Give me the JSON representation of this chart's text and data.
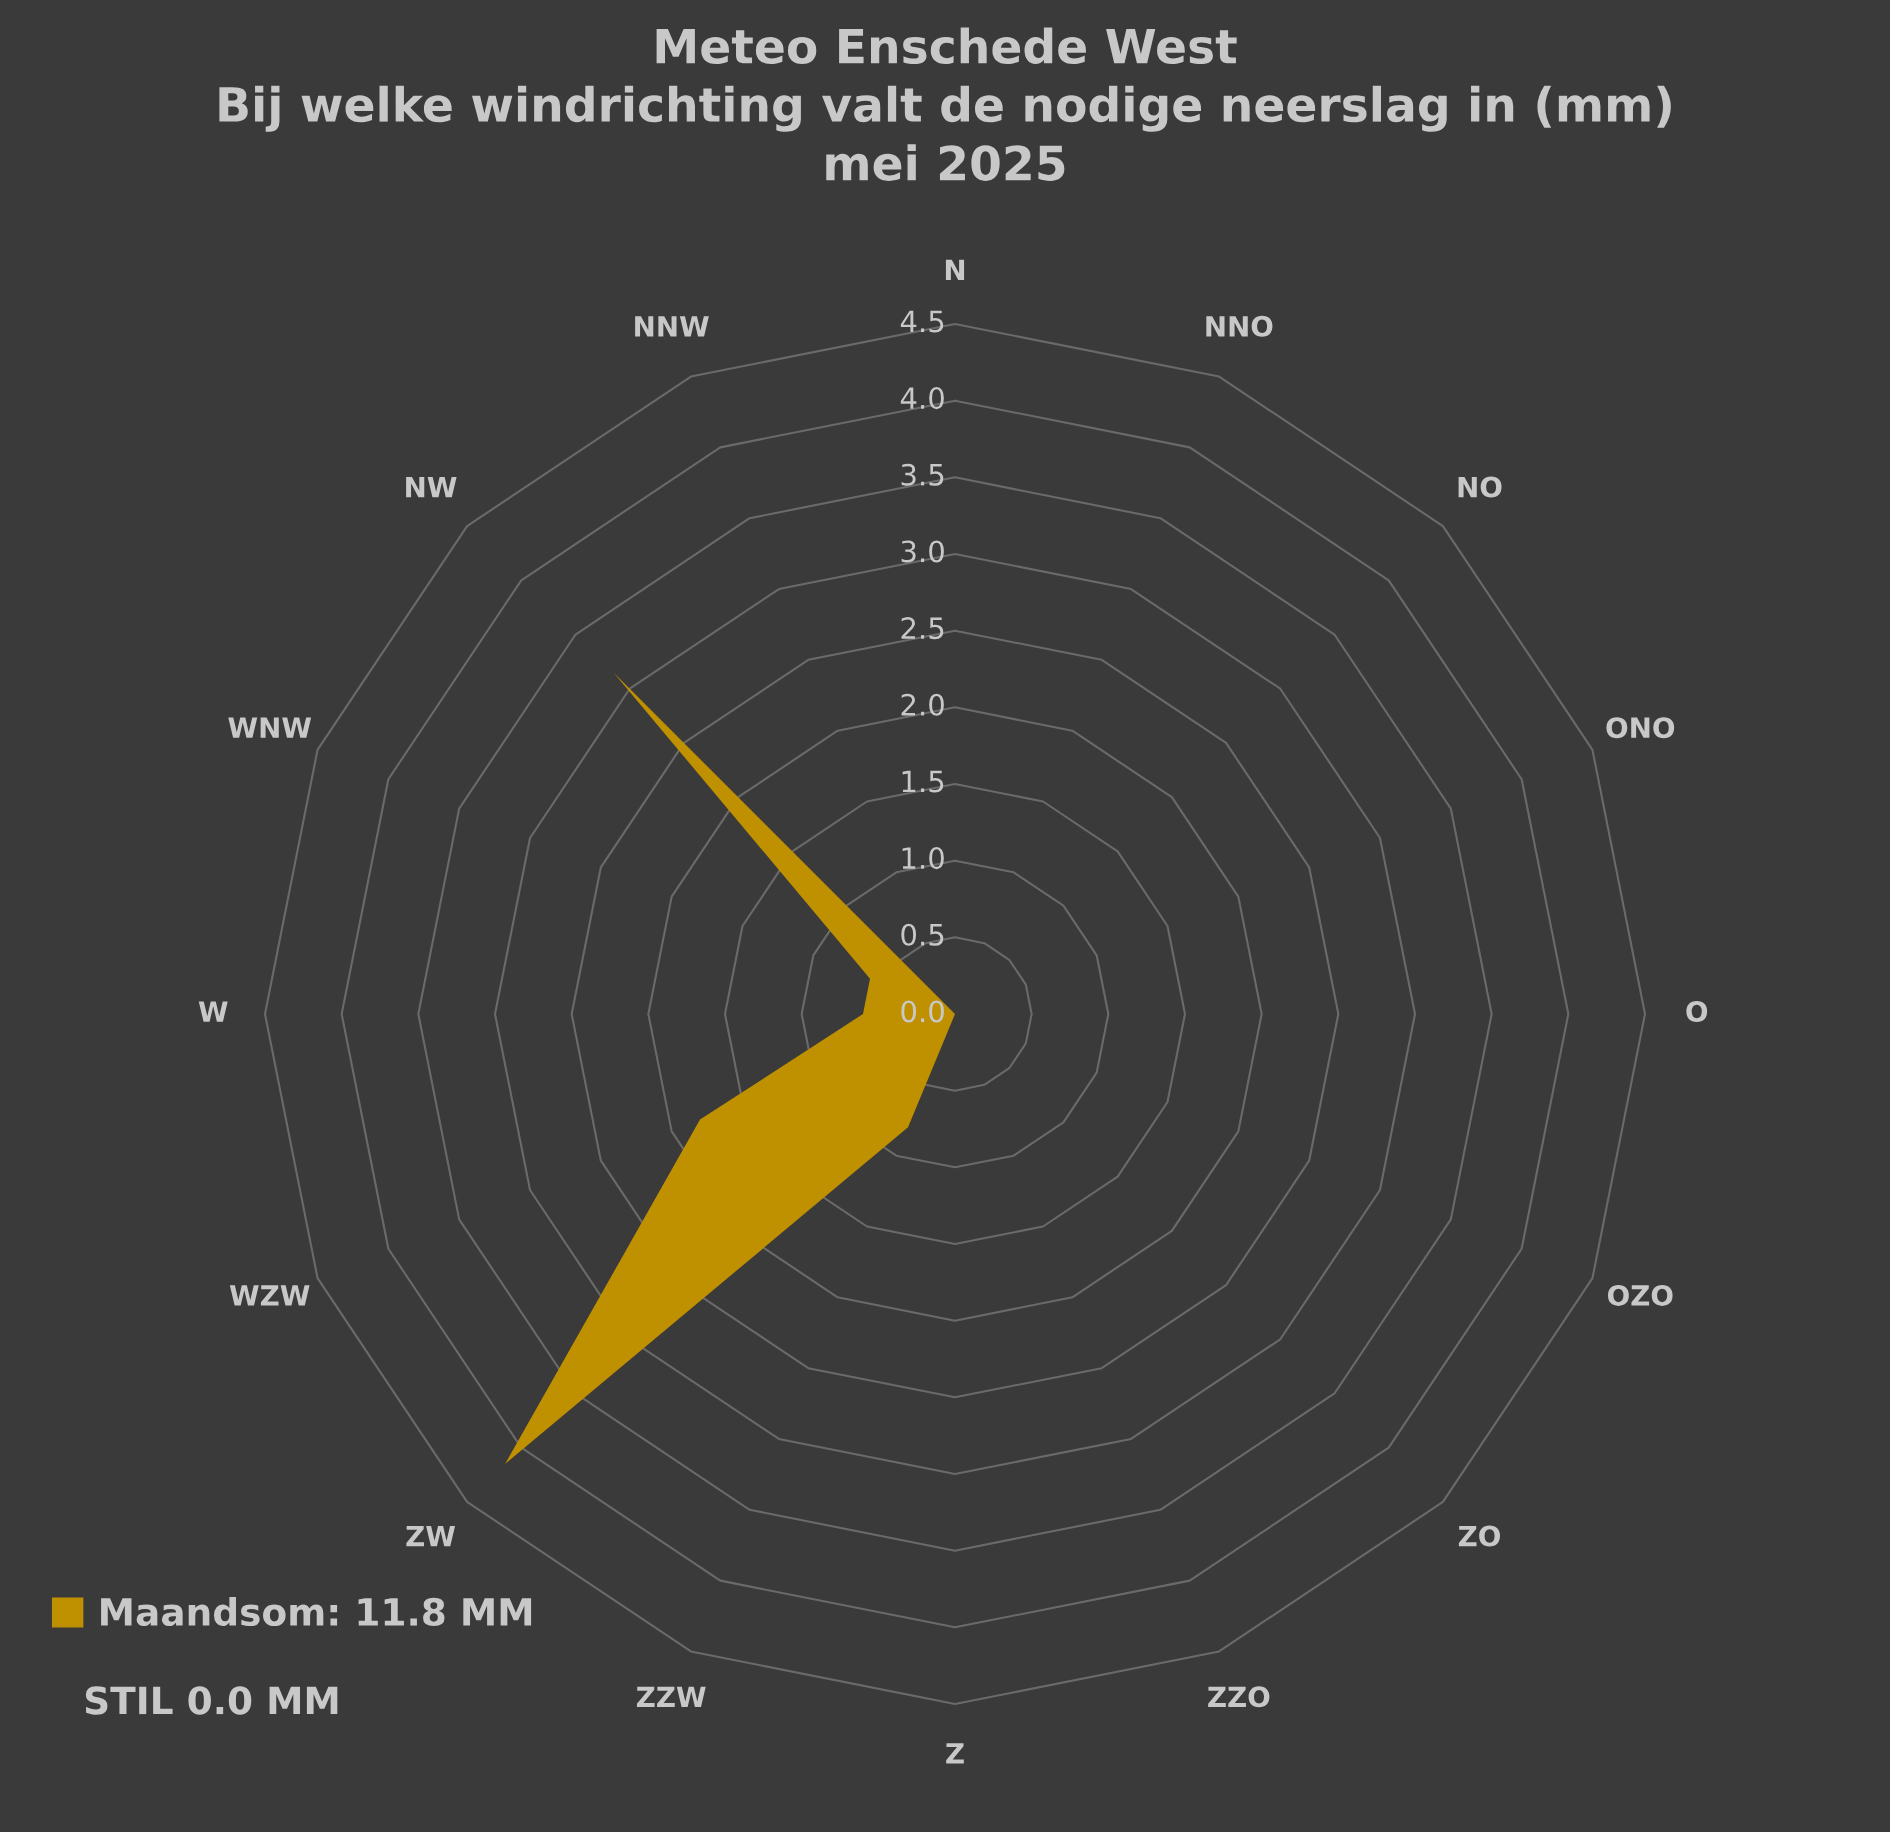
{
  "chart_data": {
    "type": "radar",
    "title": "Meteo Enschede West\nBij welke windrichting valt de nodige neerslag in (mm)\nmei 2025",
    "categories": [
      "N",
      "NNO",
      "NO",
      "ONO",
      "O",
      "OZO",
      "ZO",
      "ZZO",
      "Z",
      "ZZW",
      "ZW",
      "WZW",
      "W",
      "WNW",
      "NW",
      "NNW"
    ],
    "series": [
      {
        "name": "Maandsom: 11.8 MM",
        "color": "#bf9000",
        "type": "area",
        "values": [
          0,
          0,
          0,
          0,
          0,
          0,
          0,
          0,
          0,
          0.8,
          4.15,
          1.8,
          0.6,
          0.6,
          3.15,
          0
        ]
      }
    ],
    "ylim": [
      0,
      4.5
    ],
    "yticks": [
      {
        "value": 0,
        "label": "0.0"
      },
      {
        "value": 0.5,
        "label": "0.5"
      },
      {
        "value": 1,
        "label": "1.0"
      },
      {
        "value": 1.5,
        "label": "1.5"
      },
      {
        "value": 2,
        "label": "2.0"
      },
      {
        "value": 2.5,
        "label": "2.5"
      },
      {
        "value": 3,
        "label": "3.0"
      },
      {
        "value": 3.5,
        "label": "3.5"
      },
      {
        "value": 4,
        "label": "4.0"
      },
      {
        "value": 4.5,
        "label": "4.5"
      }
    ],
    "grid": true,
    "legend": "bottom left",
    "annotations": [
      "STIL 0.0 MM"
    ]
  }
}
